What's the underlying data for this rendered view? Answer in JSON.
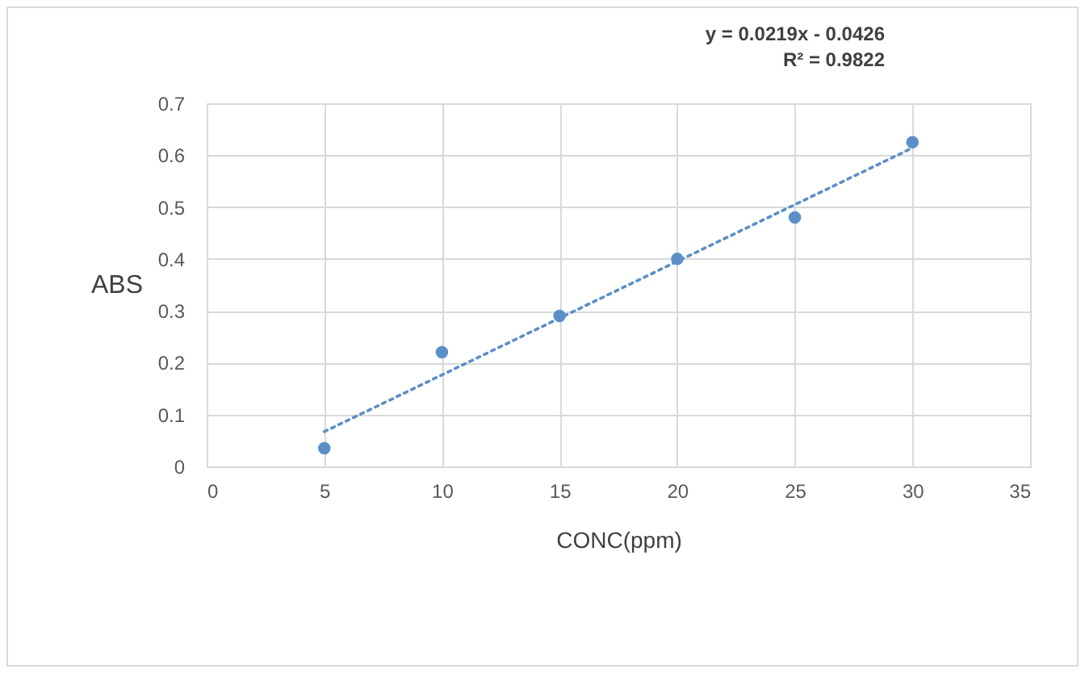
{
  "chart_data": {
    "type": "scatter",
    "xlabel": "CONC(ppm)",
    "ylabel": "ABS",
    "annotations": [
      "y = 0.0219x - 0.0426",
      "R² = 0.9822"
    ],
    "xlim": [
      0,
      35
    ],
    "xticks": [
      0,
      5,
      10,
      15,
      20,
      25,
      30,
      35
    ],
    "ylim": [
      0,
      0.7
    ],
    "yticks": [
      0,
      0.1,
      0.2,
      0.3,
      0.4,
      0.5,
      0.6,
      0.7
    ],
    "grid": true,
    "series": [
      {
        "type": "scatter",
        "color": "#5b8fc7",
        "marker": "circle",
        "x": [
          5,
          10,
          15,
          20,
          25,
          30
        ],
        "values": [
          0.035,
          0.22,
          0.29,
          0.4,
          0.48,
          0.625
        ]
      },
      {
        "type": "line",
        "color": "#5b8fc7",
        "line_style": "dotted",
        "x": [
          5,
          30
        ],
        "values": [
          0.067,
          0.614
        ]
      }
    ]
  }
}
